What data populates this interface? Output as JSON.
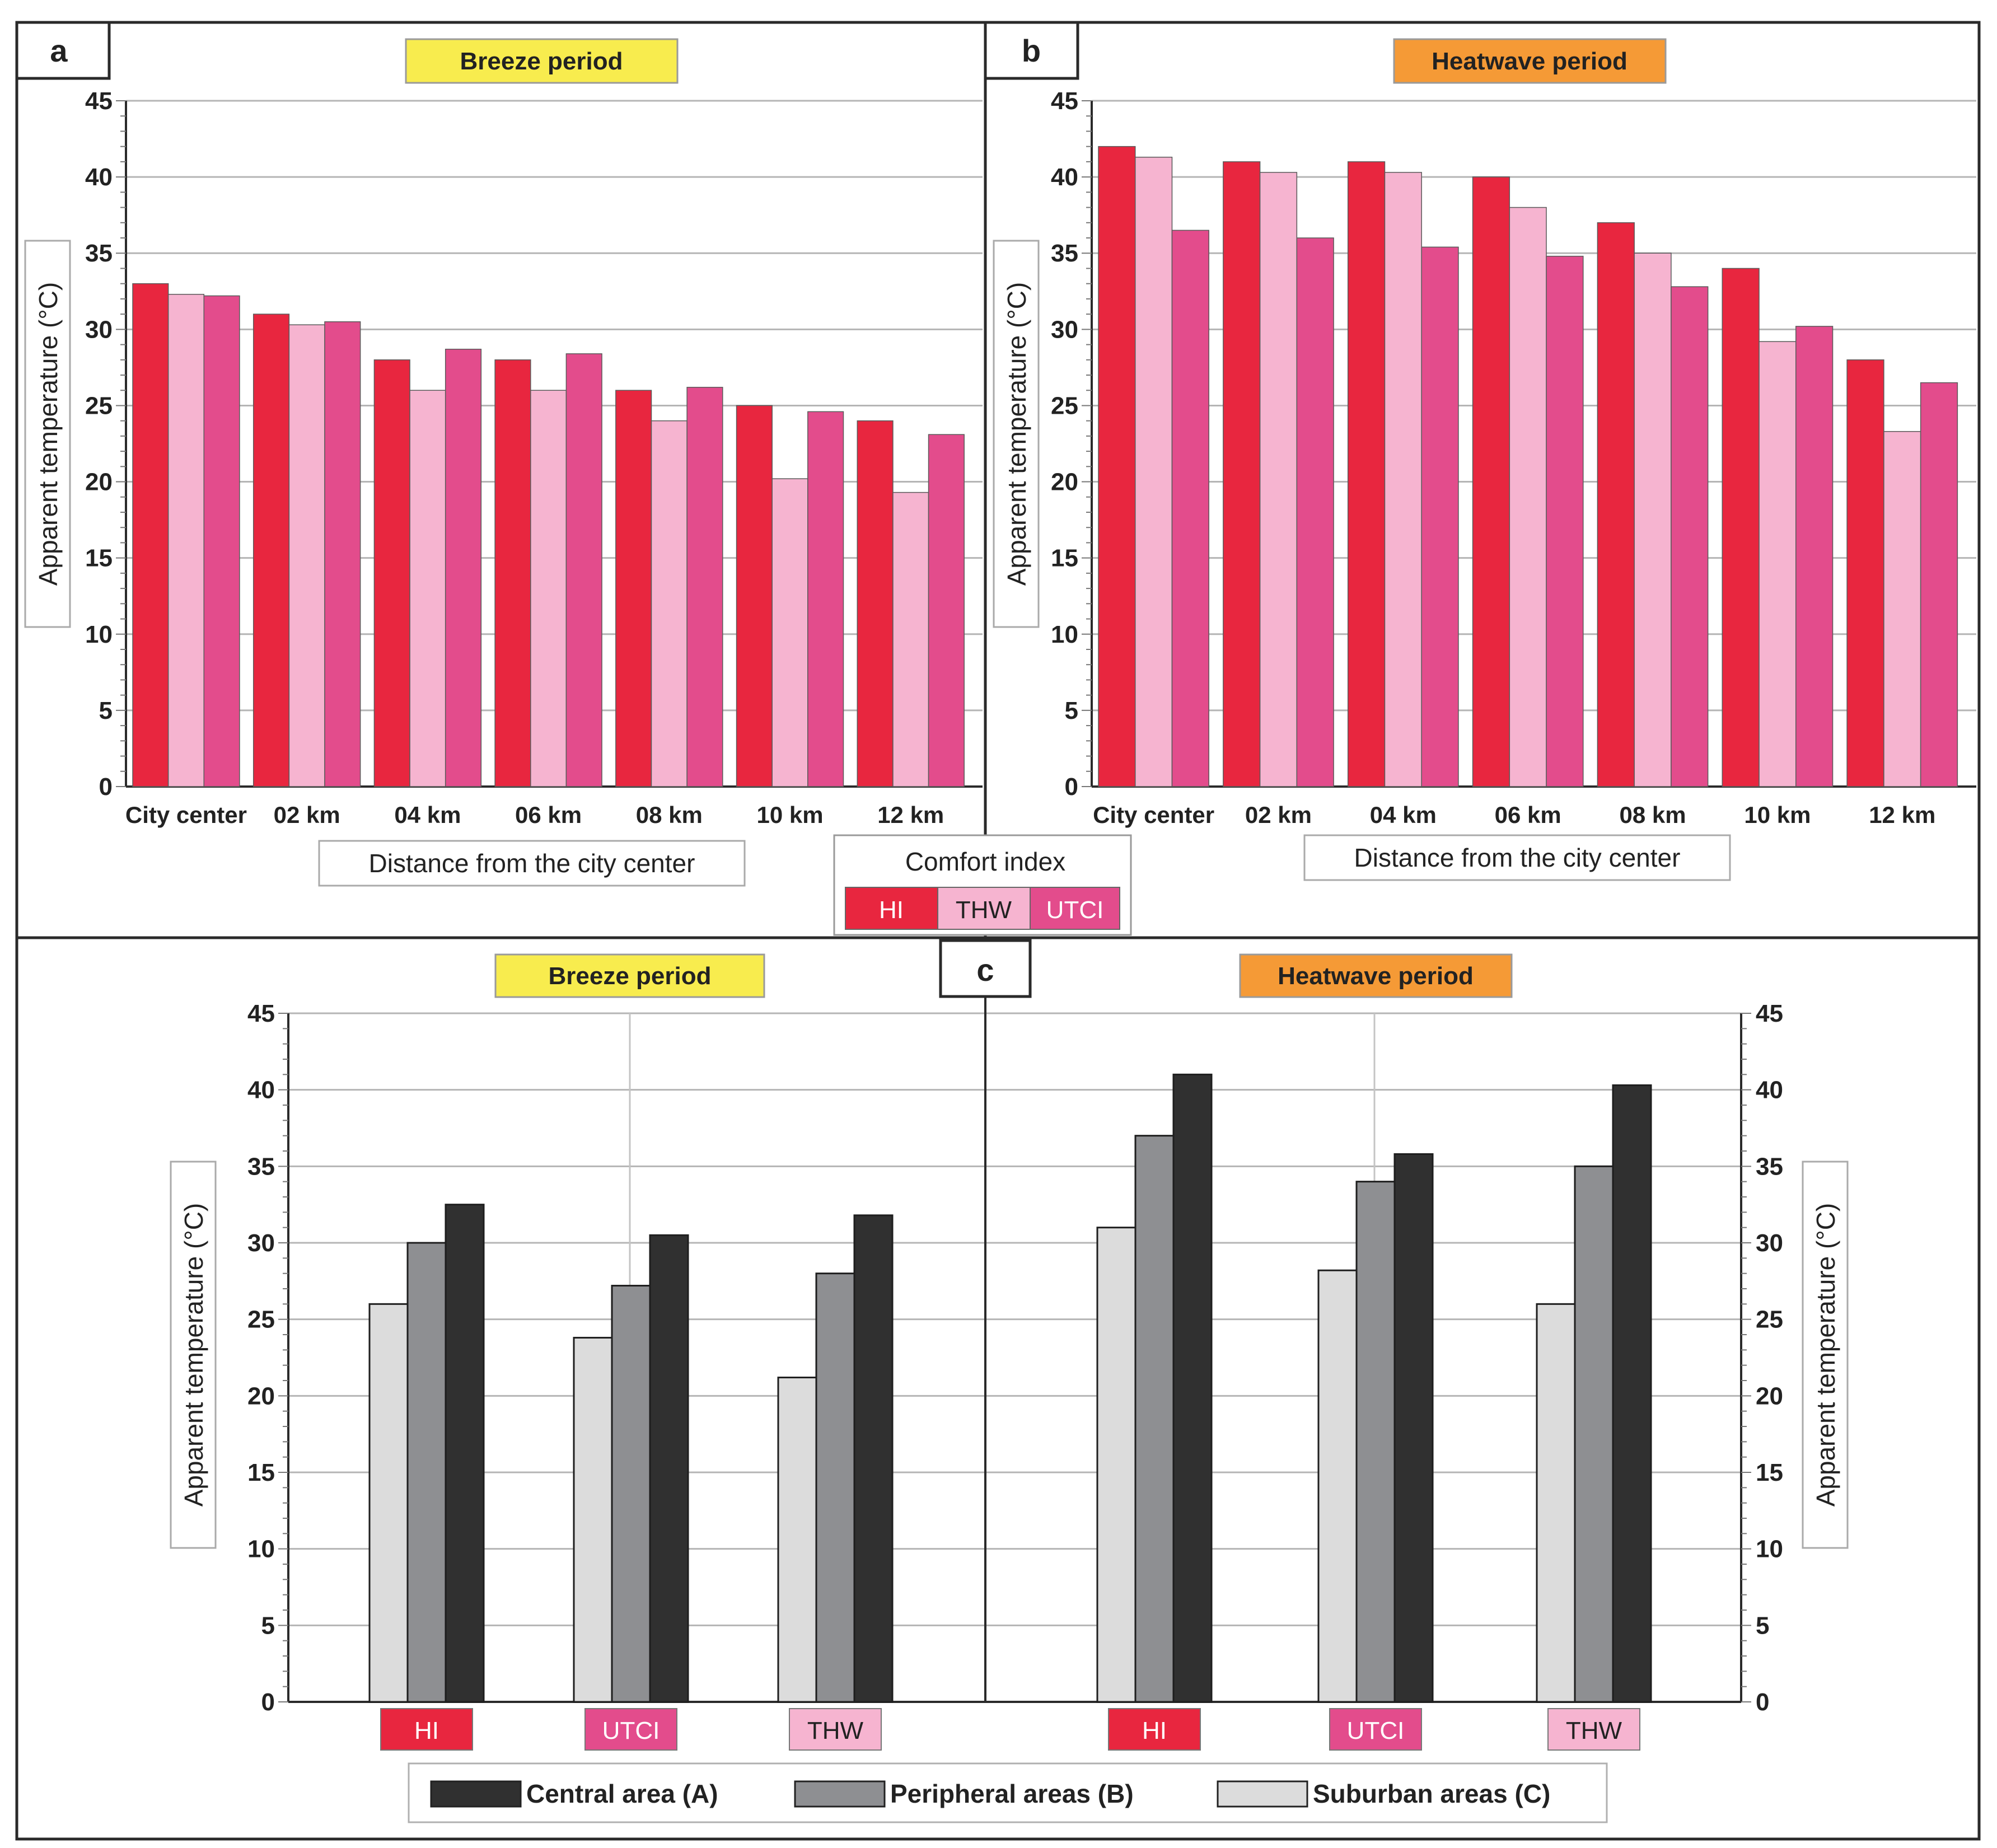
{
  "panel_labels": {
    "a": "a",
    "b": "b",
    "c": "c"
  },
  "colors": {
    "HI": "#e8263f",
    "THW": "#f6b4d0",
    "UTCI": "#e34c8c",
    "central": "#303030",
    "peripheral": "#8e8f92",
    "suburban": "#dcdcdc",
    "breeze_bg": "#f8ec4e",
    "heatwave_bg": "#f59a36",
    "grid": "#b5b5b5",
    "frame": "#2a2a2a"
  },
  "comfort_legend": {
    "title": "Comfort index",
    "items": [
      "HI",
      "THW",
      "UTCI"
    ]
  },
  "area_legend": {
    "items": [
      "Central area (A)",
      "Peripheral areas (B)",
      "Suburban areas (C)"
    ]
  },
  "chart_data": [
    {
      "id": "a",
      "type": "bar",
      "title": "Breeze period",
      "xlabel": "Distance from the city center",
      "ylabel": "Apparent temperature (°C)",
      "ylim": [
        0,
        45
      ],
      "yticks": [
        "0",
        "5",
        "10",
        "15",
        "20",
        "25",
        "30",
        "35",
        "40",
        "45"
      ],
      "categories": [
        "City center",
        "02 km",
        "04 km",
        "06 km",
        "08 km",
        "10 km",
        "12 km"
      ],
      "series": [
        {
          "name": "HI",
          "values": [
            33,
            31,
            28,
            28,
            26,
            25,
            24
          ]
        },
        {
          "name": "THW",
          "values": [
            32.3,
            30.3,
            26,
            26,
            24,
            20.2,
            19.3
          ]
        },
        {
          "name": "UTCI",
          "values": [
            32.2,
            30.5,
            28.7,
            28.4,
            26.2,
            24.6,
            23.1
          ]
        }
      ]
    },
    {
      "id": "b",
      "type": "bar",
      "title": "Heatwave period",
      "xlabel": "Distance from the city center",
      "ylabel": "Apparent temperature (°C)",
      "ylim": [
        0,
        45
      ],
      "yticks": [
        "0",
        "5",
        "10",
        "15",
        "20",
        "25",
        "30",
        "35",
        "40",
        "45"
      ],
      "categories": [
        "City center",
        "02 km",
        "04 km",
        "06 km",
        "08 km",
        "10 km",
        "12 km"
      ],
      "series": [
        {
          "name": "HI",
          "values": [
            42,
            41,
            41,
            40,
            37,
            34,
            28
          ]
        },
        {
          "name": "THW",
          "values": [
            41.3,
            40.3,
            40.3,
            38,
            35,
            29.2,
            23.3
          ]
        },
        {
          "name": "UTCI",
          "values": [
            36.5,
            36,
            35.4,
            34.8,
            32.8,
            30.2,
            26.5
          ]
        }
      ]
    },
    {
      "id": "c-breeze",
      "type": "bar",
      "title": "Breeze period",
      "ylabel": "Apparent temperature (°C)",
      "ylim": [
        0,
        45
      ],
      "yticks": [
        "0",
        "5",
        "10",
        "15",
        "20",
        "25",
        "30",
        "35",
        "40",
        "45"
      ],
      "categories": [
        "HI",
        "UTCI",
        "THW"
      ],
      "series": [
        {
          "name": "Suburban areas (C)",
          "values": [
            26,
            23.8,
            21.2
          ]
        },
        {
          "name": "Peripheral areas (B)",
          "values": [
            30,
            27.2,
            28
          ]
        },
        {
          "name": "Central area (A)",
          "values": [
            32.5,
            30.5,
            31.8
          ]
        }
      ]
    },
    {
      "id": "c-heatwave",
      "type": "bar",
      "title": "Heatwave period",
      "ylabel": "Apparent temperature (°C)",
      "ylim": [
        0,
        45
      ],
      "yticks": [
        "0",
        "5",
        "10",
        "15",
        "20",
        "25",
        "30",
        "35",
        "40",
        "45"
      ],
      "categories": [
        "HI",
        "UTCI",
        "THW"
      ],
      "series": [
        {
          "name": "Suburban areas (C)",
          "values": [
            31,
            28.2,
            26
          ]
        },
        {
          "name": "Peripheral areas (B)",
          "values": [
            37,
            34,
            35
          ]
        },
        {
          "name": "Central area (A)",
          "values": [
            41,
            35.8,
            40.3
          ]
        }
      ]
    }
  ]
}
